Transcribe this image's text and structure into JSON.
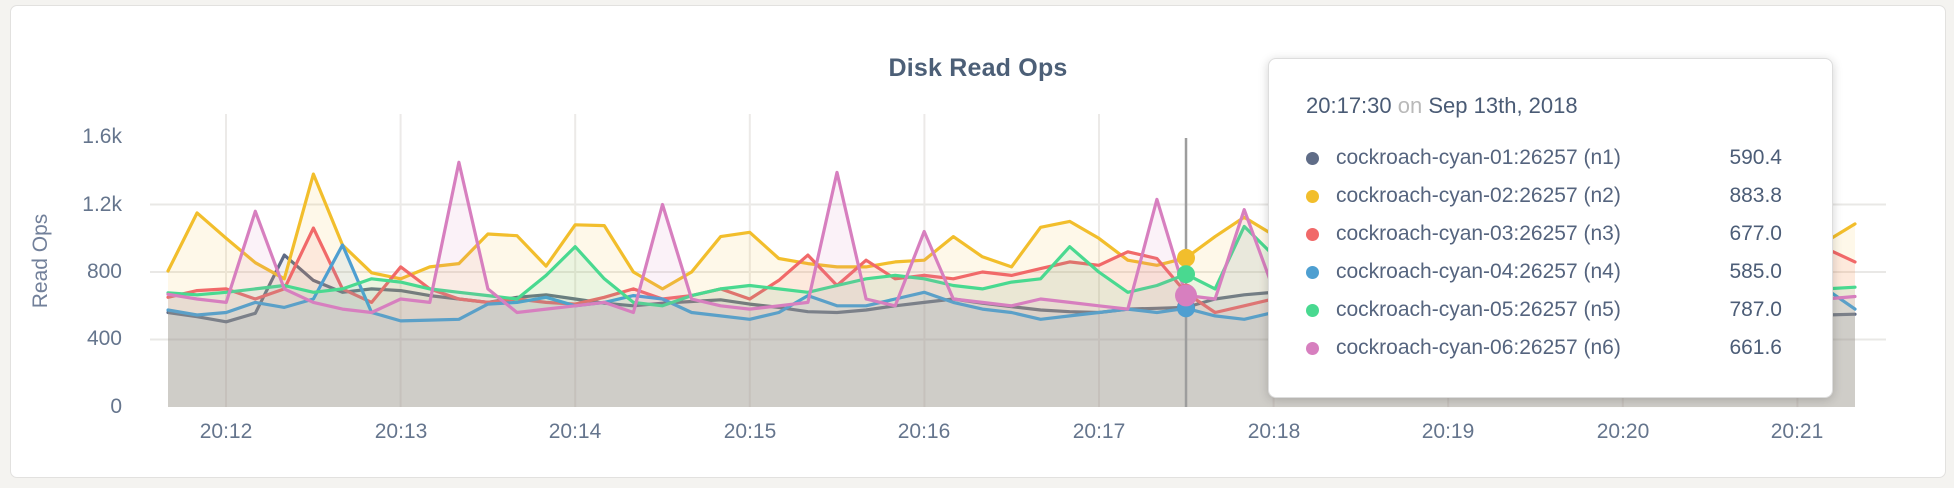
{
  "card": {
    "background": "#ffffff",
    "page_background": "#f4f3f0"
  },
  "chart_data": {
    "type": "line",
    "title": "Disk Read Ops",
    "ylabel": "Read Ops",
    "xlabel": "",
    "grid": true,
    "legend_position": "tooltip-only",
    "ylim": [
      0,
      1600
    ],
    "y_ticks": [
      "1.6k",
      "1.2k",
      "800",
      "400",
      "0"
    ],
    "y_tick_values": [
      1600,
      1200,
      800,
      400,
      0
    ],
    "x_ticks": [
      "20:12",
      "20:13",
      "20:14",
      "20:15",
      "20:16",
      "20:17",
      "20:18",
      "20:19",
      "20:20",
      "20:21"
    ],
    "x_start_time": "20:11:40",
    "x_step_seconds": 10,
    "fill_opacity": 0.1,
    "series": [
      {
        "name": "cockroach-cyan-01:26257 (n1)",
        "color": "#5F6C87",
        "values": [
          560,
          535,
          505,
          555,
          900,
          750,
          680,
          700,
          690,
          660,
          640,
          620,
          650,
          665,
          640,
          615,
          600,
          615,
          625,
          635,
          610,
          590,
          565,
          560,
          575,
          600,
          620,
          640,
          615,
          595,
          575,
          565,
          560,
          580,
          585,
          590.4,
          640,
          665,
          680,
          650,
          620,
          600,
          580,
          570,
          560,
          580,
          600,
          590,
          570,
          560,
          550,
          560,
          570,
          560,
          550,
          555,
          560,
          545,
          550
        ]
      },
      {
        "name": "cockroach-cyan-02:26257 (n2)",
        "color": "#F2BE2C",
        "values": [
          806,
          1150,
          1000,
          855,
          760,
          1380,
          960,
          795,
          760,
          830,
          850,
          1025,
          1015,
          835,
          1080,
          1075,
          800,
          700,
          800,
          1010,
          1035,
          880,
          850,
          830,
          830,
          860,
          870,
          1010,
          890,
          830,
          1065,
          1100,
          1000,
          870,
          840,
          883.8,
          1010,
          1125,
          1020,
          870,
          820,
          780,
          860,
          800,
          760,
          830,
          790,
          820,
          860,
          780,
          800,
          840,
          790,
          820,
          860,
          800,
          840,
          980,
          1085
        ]
      },
      {
        "name": "cockroach-cyan-03:26257 (n3)",
        "color": "#F16969",
        "values": [
          650,
          690,
          700,
          640,
          700,
          1060,
          700,
          620,
          830,
          700,
          640,
          620,
          640,
          620,
          610,
          650,
          700,
          640,
          660,
          700,
          640,
          750,
          900,
          720,
          870,
          760,
          780,
          760,
          800,
          780,
          820,
          860,
          840,
          920,
          880,
          677,
          560,
          600,
          640,
          700,
          660,
          640,
          680,
          660,
          640,
          660,
          700,
          680,
          660,
          640,
          660,
          680,
          660,
          640,
          660,
          680,
          700,
          940,
          860
        ]
      },
      {
        "name": "cockroach-cyan-04:26257 (n4)",
        "color": "#4E9FD1",
        "values": [
          575,
          545,
          560,
          620,
          590,
          640,
          960,
          560,
          510,
          515,
          520,
          610,
          620,
          650,
          600,
          620,
          660,
          640,
          560,
          540,
          520,
          560,
          660,
          600,
          600,
          640,
          680,
          620,
          580,
          560,
          520,
          540,
          560,
          580,
          560,
          585,
          540,
          520,
          560,
          580,
          560,
          540,
          560,
          580,
          560,
          540,
          560,
          580,
          560,
          540,
          560,
          580,
          560,
          540,
          560,
          580,
          1010,
          700,
          580
        ]
      },
      {
        "name": "cockroach-cyan-05:26257 (n5)",
        "color": "#49D990",
        "values": [
          676,
          665,
          680,
          700,
          720,
          680,
          700,
          760,
          740,
          700,
          680,
          660,
          640,
          780,
          950,
          760,
          620,
          600,
          660,
          700,
          720,
          700,
          680,
          720,
          760,
          780,
          760,
          720,
          700,
          740,
          760,
          950,
          800,
          680,
          720,
          787,
          700,
          1070,
          900,
          850,
          760,
          720,
          700,
          660,
          680,
          700,
          680,
          660,
          680,
          700,
          680,
          660,
          680,
          700,
          680,
          660,
          660,
          700,
          710
        ]
      },
      {
        "name": "cockroach-cyan-06:26257 (n6)",
        "color": "#D77FBF",
        "values": [
          668,
          640,
          620,
          1160,
          700,
          620,
          580,
          560,
          640,
          620,
          1450,
          700,
          560,
          580,
          600,
          620,
          560,
          1200,
          640,
          600,
          580,
          600,
          620,
          1390,
          640,
          600,
          1040,
          640,
          620,
          600,
          640,
          620,
          600,
          580,
          1230,
          661.6,
          640,
          1170,
          700,
          640,
          620,
          600,
          640,
          620,
          600,
          640,
          620,
          600,
          640,
          620,
          600,
          640,
          620,
          600,
          640,
          620,
          700,
          640,
          655
        ]
      }
    ]
  },
  "crosshair": {
    "index": 35,
    "color": "#9d9d9d"
  },
  "tooltip": {
    "time": "20:17:30",
    "on_word": "on",
    "date": "Sep 13th, 2018",
    "rows": [
      {
        "label": "cockroach-cyan-01:26257 (n1)",
        "value": "590.4",
        "color": "#5F6C87"
      },
      {
        "label": "cockroach-cyan-02:26257 (n2)",
        "value": "883.8",
        "color": "#F2BE2C"
      },
      {
        "label": "cockroach-cyan-03:26257 (n3)",
        "value": "677.0",
        "color": "#F16969"
      },
      {
        "label": "cockroach-cyan-04:26257 (n4)",
        "value": "585.0",
        "color": "#4E9FD1"
      },
      {
        "label": "cockroach-cyan-05:26257 (n5)",
        "value": "787.0",
        "color": "#49D990"
      },
      {
        "label": "cockroach-cyan-06:26257 (n6)",
        "value": "661.6",
        "color": "#D77FBF"
      }
    ]
  }
}
